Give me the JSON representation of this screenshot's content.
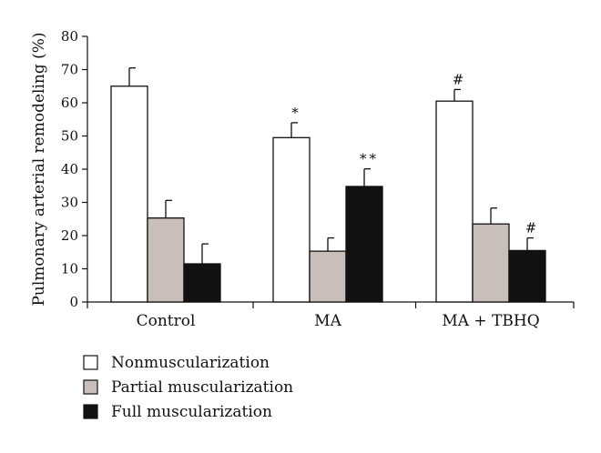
{
  "chart_data": {
    "type": "bar",
    "title": "",
    "xlabel": "",
    "ylabel": "Pulmonary arterial remodeling (%)",
    "ylim": [
      0,
      80
    ],
    "yticks": [
      0,
      10,
      20,
      30,
      40,
      50,
      60,
      70,
      80
    ],
    "categories": [
      "Control",
      "MA",
      "MA + TBHQ"
    ],
    "series": [
      {
        "name": "Nonmuscularization",
        "color": "#ffffff",
        "values": [
          65,
          49.5,
          60.5
        ],
        "errors": [
          5.5,
          4.5,
          3.5
        ],
        "annotations": [
          "",
          "*",
          "#"
        ]
      },
      {
        "name": "Partial muscularization",
        "color": "#c8bfbb",
        "values": [
          25.3,
          15.3,
          23.5
        ],
        "errors": [
          5.3,
          4.0,
          4.8
        ],
        "annotations": [
          "",
          "",
          ""
        ]
      },
      {
        "name": "Full muscularization",
        "color": "#111111",
        "values": [
          11.5,
          34.8,
          15.5
        ],
        "errors": [
          6.0,
          5.3,
          3.8
        ],
        "annotations": [
          "",
          "**",
          "#"
        ]
      }
    ],
    "grid": false,
    "legend_position": "bottom-left"
  }
}
